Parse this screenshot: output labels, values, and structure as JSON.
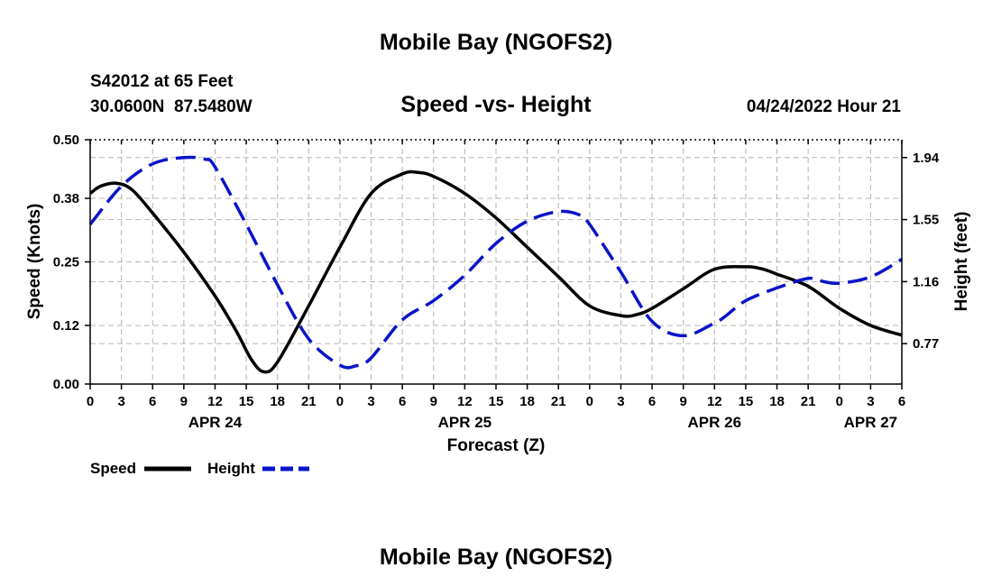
{
  "header": {
    "main_title": "Mobile Bay (NGOFS2)",
    "station_line": "S42012 at 65 Feet",
    "coords_line": "30.0600N  87.5480W",
    "subtitle": "Speed -vs- Height",
    "timestamp": "04/24/2022 Hour 21",
    "footer_title": "Mobile Bay (NGOFS2)"
  },
  "colors": {
    "speed": "#000000",
    "height": "#0a14c8",
    "grid": "#b4b4b4",
    "axis": "#000000"
  },
  "chart_data": {
    "type": "line",
    "title": "Speed -vs- Height",
    "xlabel": "Forecast (Z)",
    "ylabel": "Speed (Knots)",
    "y2label": "Height (feet)",
    "xlim": [
      0,
      78
    ],
    "ylim": [
      0,
      0.5
    ],
    "y2lim": [
      0.516,
      2.052
    ],
    "grid": true,
    "legend_position": "bottom-left",
    "x_ticks": [
      0,
      3,
      6,
      9,
      12,
      15,
      18,
      21,
      24,
      27,
      30,
      33,
      36,
      39,
      42,
      45,
      48,
      51,
      54,
      57,
      60,
      63,
      66,
      69,
      72,
      75,
      78
    ],
    "x_tick_labels": [
      "0",
      "3",
      "6",
      "9",
      "12",
      "15",
      "18",
      "21",
      "0",
      "3",
      "6",
      "9",
      "12",
      "15",
      "18",
      "21",
      "0",
      "3",
      "6",
      "9",
      "12",
      "15",
      "18",
      "21",
      "0",
      "3",
      "6"
    ],
    "date_labels": [
      {
        "x": 12,
        "label": "APR 24"
      },
      {
        "x": 36,
        "label": "APR 25"
      },
      {
        "x": 60,
        "label": "APR 26"
      },
      {
        "x": 75,
        "label": "APR 27"
      }
    ],
    "y_ticks": [
      0.0,
      0.12,
      0.25,
      0.38,
      0.5
    ],
    "y_tick_labels": [
      "0.00",
      "0.12",
      "0.25",
      "0.38",
      "0.50"
    ],
    "y2_ticks": [
      0.77,
      1.16,
      1.55,
      1.94
    ],
    "y2_tick_labels": [
      "0.77",
      "1.16",
      "1.55",
      "1.94"
    ],
    "series": [
      {
        "name": "Speed",
        "axis": "left",
        "style": "solid",
        "x": [
          0,
          1,
          2.5,
          4,
          6,
          9,
          12,
          14,
          15.5,
          16.7,
          18,
          21,
          24,
          27,
          30,
          31.5,
          33,
          36,
          39,
          42,
          45,
          48,
          51,
          52.5,
          54,
          57,
          60,
          63,
          64.5,
          66,
          69,
          72,
          75,
          78
        ],
        "values": [
          0.39,
          0.405,
          0.411,
          0.398,
          0.35,
          0.27,
          0.18,
          0.11,
          0.05,
          0.025,
          0.045,
          0.16,
          0.28,
          0.39,
          0.43,
          0.433,
          0.425,
          0.39,
          0.34,
          0.28,
          0.22,
          0.16,
          0.14,
          0.142,
          0.155,
          0.195,
          0.235,
          0.24,
          0.236,
          0.225,
          0.2,
          0.155,
          0.12,
          0.1
        ]
      },
      {
        "name": "Height",
        "axis": "right",
        "style": "dashed",
        "x": [
          0,
          3,
          6,
          9,
          11,
          12,
          15,
          18,
          21,
          24,
          25.5,
          27,
          30,
          33,
          36,
          39,
          42,
          45,
          47,
          48,
          51,
          54,
          57,
          60,
          61,
          63,
          66,
          69,
          70.5,
          72,
          75,
          78
        ],
        "values": [
          1.52,
          1.76,
          1.9,
          1.94,
          1.93,
          1.88,
          1.52,
          1.14,
          0.8,
          0.635,
          0.63,
          0.68,
          0.92,
          1.04,
          1.2,
          1.4,
          1.54,
          1.6,
          1.58,
          1.52,
          1.22,
          0.91,
          0.82,
          0.9,
          0.94,
          1.04,
          1.12,
          1.18,
          1.16,
          1.15,
          1.19,
          1.3
        ]
      }
    ]
  }
}
